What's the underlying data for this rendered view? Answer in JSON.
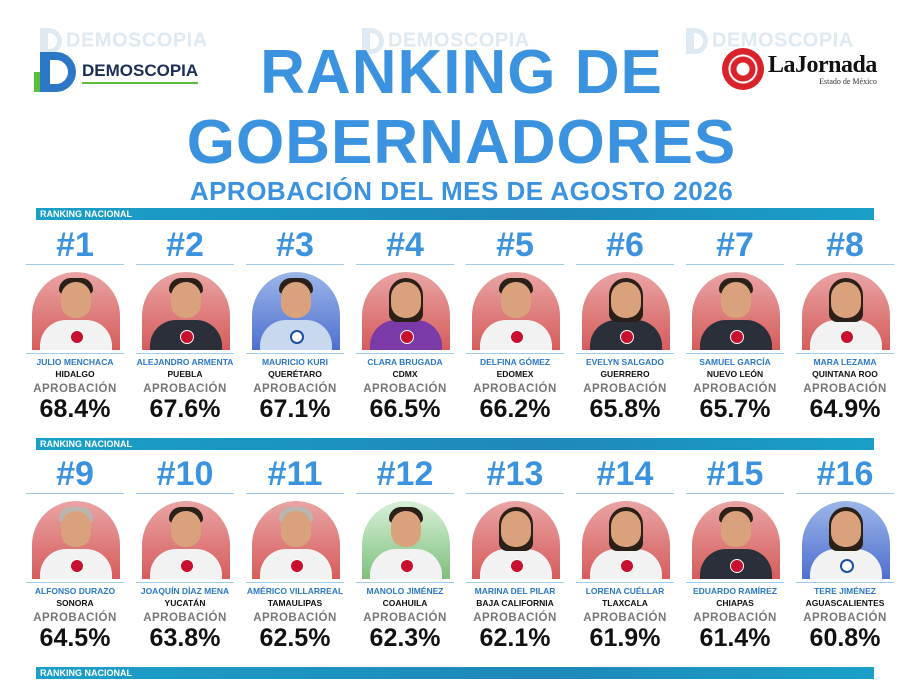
{
  "header": {
    "watermark_text": "DEMOSCOPIA",
    "demoscopia_logo": "DEMOSCOPIA",
    "jornada_logo": "LaJornada",
    "jornada_sub": "Estado de México",
    "title_line1": "RANKING DE",
    "title_line2": "GOBERNADORES",
    "subtitle": "APROBACIÓN DEL MES DE AGOSTO 2026"
  },
  "section_label": "RANKING NACIONAL",
  "approval_label": "APROBACIÓN",
  "colors": {
    "title_blue": "#3b93e0",
    "bar_teal": "#1aa0c8",
    "name_blue": "#2a78c6"
  },
  "governors": [
    {
      "rank": "#1",
      "name": "JULIO MENCHACA",
      "state": "HIDALGO",
      "approval": "68.4%",
      "party_icon": "morena-badge-icon"
    },
    {
      "rank": "#2",
      "name": "ALEJANDRO ARMENTA",
      "state": "PUEBLA",
      "approval": "67.6%",
      "party_icon": "morena-badge-icon"
    },
    {
      "rank": "#3",
      "name": "MAURICIO KURI",
      "state": "QUERÉTARO",
      "approval": "67.1%",
      "party_icon": "pan-badge-icon"
    },
    {
      "rank": "#4",
      "name": "CLARA BRUGADA",
      "state": "CDMX",
      "approval": "66.5%",
      "party_icon": "morena-badge-icon"
    },
    {
      "rank": "#5",
      "name": "DELFINA GÓMEZ",
      "state": "EDOMEX",
      "approval": "66.2%",
      "party_icon": "morena-badge-icon"
    },
    {
      "rank": "#6",
      "name": "EVELYN SALGADO",
      "state": "GUERRERO",
      "approval": "65.8%",
      "party_icon": "morena-badge-icon"
    },
    {
      "rank": "#7",
      "name": "SAMUEL GARCÍA",
      "state": "NUEVO LEÓN",
      "approval": "65.7%",
      "party_icon": "mc-badge-icon"
    },
    {
      "rank": "#8",
      "name": "MARA LEZAMA",
      "state": "QUINTANA ROO",
      "approval": "64.9%",
      "party_icon": "morena-badge-icon"
    },
    {
      "rank": "#9",
      "name": "ALFONSO DURAZO",
      "state": "SONORA",
      "approval": "64.5%",
      "party_icon": "morena-badge-icon"
    },
    {
      "rank": "#10",
      "name": "JOAQUÍN DÍAZ MENA",
      "state": "YUCATÁN",
      "approval": "63.8%",
      "party_icon": "morena-badge-icon"
    },
    {
      "rank": "#11",
      "name": "AMÉRICO VILLARREAL",
      "state": "TAMAULIPAS",
      "approval": "62.5%",
      "party_icon": "morena-badge-icon"
    },
    {
      "rank": "#12",
      "name": "MANOLO JIMÉNEZ",
      "state": "COAHUILA",
      "approval": "62.3%",
      "party_icon": "pri-badge-icon"
    },
    {
      "rank": "#13",
      "name": "MARINA DEL PILAR",
      "state": "BAJA CALIFORNIA",
      "approval": "62.1%",
      "party_icon": "morena-badge-icon"
    },
    {
      "rank": "#14",
      "name": "LORENA CUÉLLAR",
      "state": "TLAXCALA",
      "approval": "61.9%",
      "party_icon": "morena-badge-icon"
    },
    {
      "rank": "#15",
      "name": "EDUARDO RAMÍREZ",
      "state": "CHIAPAS",
      "approval": "61.4%",
      "party_icon": "morena-badge-icon"
    },
    {
      "rank": "#16",
      "name": "TERE JIMÉNEZ",
      "state": "AGUASCALIENTES",
      "approval": "60.8%",
      "party_icon": "pan-badge-icon"
    }
  ]
}
